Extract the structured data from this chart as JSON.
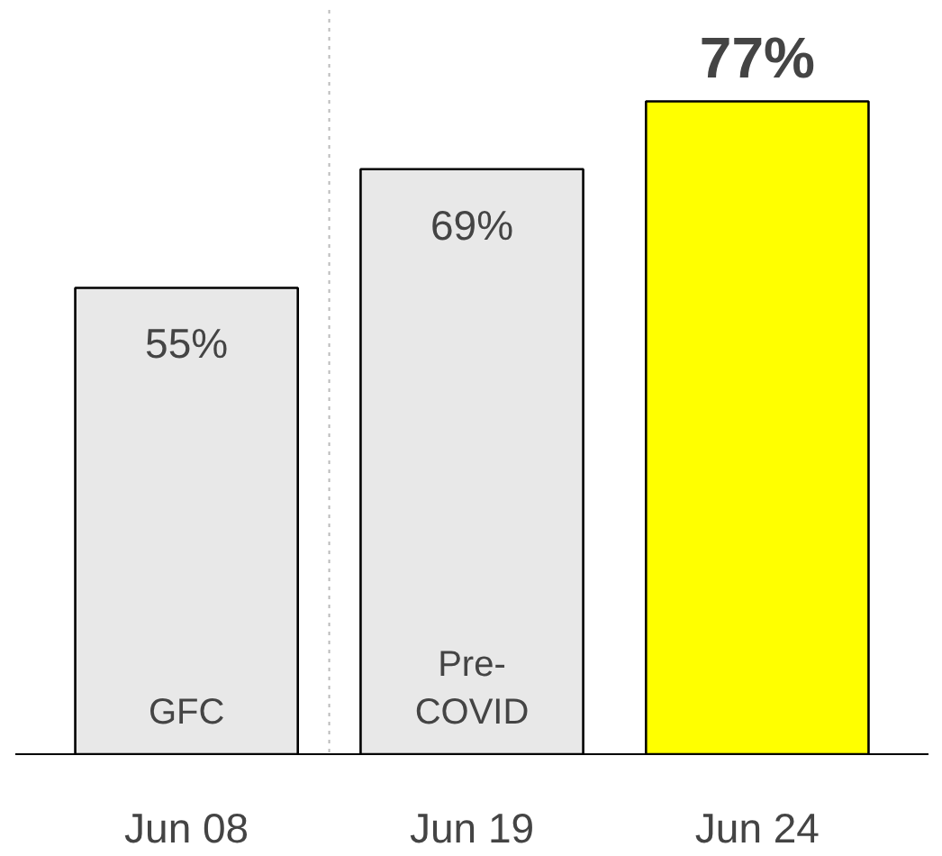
{
  "chart_data": {
    "type": "bar",
    "categories": [
      "Jun 08",
      "Jun 19",
      "Jun 24"
    ],
    "values": [
      55,
      69,
      77
    ],
    "colors": [
      "#e8e8e8",
      "#e8e8e8",
      "#ffff00"
    ],
    "data_labels": true,
    "value_labels": [
      "55%",
      "69%",
      "77%"
    ],
    "annotations": [
      "GFC",
      "Pre-COVID"
    ],
    "tick_labels": "x",
    "grid": false
  }
}
